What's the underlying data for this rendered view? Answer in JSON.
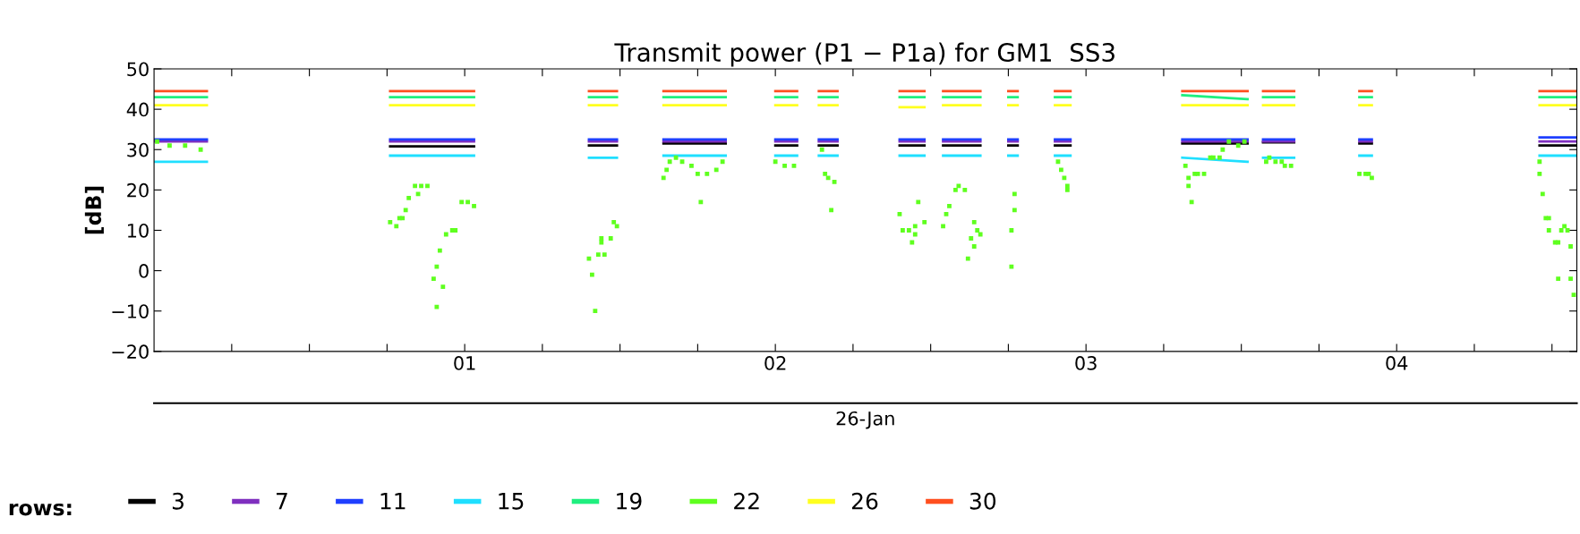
{
  "chart_data": {
    "type": "line",
    "title": "Transmit power (P1 − P1a) for GM1  SS3",
    "xlabel": "26-Jan",
    "ylabel": "[dB]",
    "legend_title": "rows:",
    "legend": "bottom left",
    "grid": false,
    "line_style": "solid",
    "marker": "none",
    "x": [
      0.0,
      0.17,
      0.4,
      0.76,
      1.03,
      1.2,
      1.4,
      1.49,
      1.55,
      1.64,
      1.84,
      1.9,
      2.0,
      2.07,
      2.1,
      2.14,
      2.2,
      2.3,
      2.4,
      2.48,
      2.5,
      2.54,
      2.66,
      2.7,
      2.75,
      2.78,
      2.85,
      2.9,
      2.95,
      3.1,
      3.31,
      3.52,
      3.55,
      3.57,
      3.67,
      3.8,
      3.88,
      3.92,
      4.2,
      4.46,
      4.58
    ],
    "xlim": [
      0,
      4.58
    ],
    "xticks": [
      {
        "value": 0.25,
        "label": null
      },
      {
        "value": 0.5,
        "label": null
      },
      {
        "value": 0.75,
        "label": null
      },
      {
        "value": 1,
        "label": "01"
      },
      {
        "value": 1.25,
        "label": null
      },
      {
        "value": 1.5,
        "label": null
      },
      {
        "value": 1.75,
        "label": null
      },
      {
        "value": 2,
        "label": "02"
      },
      {
        "value": 2.25,
        "label": null
      },
      {
        "value": 2.5,
        "label": null
      },
      {
        "value": 2.75,
        "label": null
      },
      {
        "value": 3,
        "label": "03"
      },
      {
        "value": 3.25,
        "label": null
      },
      {
        "value": 3.5,
        "label": null
      },
      {
        "value": 3.75,
        "label": null
      },
      {
        "value": 4,
        "label": "04"
      },
      {
        "value": 4.25,
        "label": null
      },
      {
        "value": 4.5,
        "label": null
      }
    ],
    "ylim": [
      -20,
      50
    ],
    "yticks": [
      {
        "value": -20,
        "label": "−20"
      },
      {
        "value": -10,
        "label": "−10"
      },
      0,
      10,
      20,
      30,
      40,
      50
    ],
    "series": [
      {
        "name": "3",
        "color": "#000000",
        "values": [
          null,
          null,
          null,
          30.8,
          30.8,
          null,
          31,
          31,
          null,
          31.5,
          31.5,
          null,
          31,
          31,
          null,
          31,
          31,
          null,
          31,
          31,
          null,
          31,
          31,
          null,
          31,
          31,
          null,
          31,
          31,
          null,
          31.5,
          31.5,
          null,
          31.8,
          31.8,
          null,
          31.5,
          31.5,
          null,
          31,
          31
        ]
      },
      {
        "name": "7",
        "color": "#7f2fbf",
        "values": [
          32,
          32,
          null,
          32,
          32,
          null,
          32,
          32,
          null,
          32,
          32,
          null,
          32,
          32,
          null,
          32,
          32,
          null,
          32,
          32,
          null,
          32,
          32,
          null,
          32,
          32,
          null,
          32,
          32,
          null,
          32,
          32,
          null,
          32,
          32,
          null,
          32,
          32,
          null,
          32,
          32
        ]
      },
      {
        "name": "11",
        "color": "#1f3fff",
        "values": [
          32.5,
          32.5,
          null,
          32.5,
          32.5,
          null,
          32.5,
          32.5,
          null,
          32.5,
          32.5,
          null,
          32.5,
          32.5,
          null,
          32.5,
          32.5,
          null,
          32.5,
          32.5,
          null,
          32.5,
          32.5,
          null,
          32.5,
          32.5,
          null,
          32.5,
          32.5,
          null,
          32.5,
          32.5,
          null,
          32.5,
          32.5,
          null,
          32.5,
          32.5,
          null,
          33,
          33
        ]
      },
      {
        "name": "15",
        "color": "#1fdfff",
        "values": [
          27,
          27,
          null,
          28.5,
          28.5,
          null,
          28,
          28,
          null,
          28.5,
          28.5,
          null,
          28.5,
          28.5,
          null,
          28.5,
          28.5,
          null,
          28.5,
          28.5,
          null,
          28.5,
          28.5,
          null,
          28.5,
          28.5,
          null,
          28.5,
          28.5,
          null,
          28,
          27,
          null,
          28,
          28,
          null,
          28.5,
          28.5,
          null,
          28.5,
          28.5
        ]
      },
      {
        "name": "19",
        "color": "#1fef7f",
        "values": [
          43,
          43,
          null,
          43,
          43,
          null,
          43,
          43,
          null,
          43,
          43,
          null,
          43,
          43,
          null,
          43,
          43,
          null,
          43,
          43,
          null,
          43,
          43,
          null,
          43,
          43,
          null,
          43,
          43,
          null,
          43.5,
          42.5,
          null,
          43,
          43,
          null,
          43,
          43,
          null,
          43,
          43
        ]
      },
      {
        "name": "22",
        "type": "scatter",
        "marker": "square",
        "color": "#5fff1f",
        "x": [
          0.01,
          0.05,
          0.1,
          0.15,
          0.76,
          0.78,
          0.79,
          0.8,
          0.81,
          0.82,
          0.84,
          0.85,
          0.86,
          0.88,
          0.9,
          0.91,
          0.92,
          0.93,
          0.91,
          0.94,
          0.96,
          0.97,
          0.99,
          1.01,
          1.03,
          1.4,
          1.41,
          1.42,
          1.43,
          1.44,
          1.44,
          1.45,
          1.47,
          1.48,
          1.49,
          1.64,
          1.65,
          1.66,
          1.68,
          1.7,
          1.73,
          1.75,
          1.78,
          1.81,
          1.83,
          1.76,
          2.0,
          2.03,
          2.06,
          2.15,
          2.16,
          2.17,
          2.19,
          2.18,
          2.4,
          2.41,
          2.43,
          2.44,
          2.45,
          2.45,
          2.46,
          2.48,
          2.54,
          2.55,
          2.56,
          2.58,
          2.59,
          2.61,
          2.62,
          2.63,
          2.64,
          2.64,
          2.65,
          2.66,
          2.77,
          2.77,
          2.76,
          2.76,
          2.91,
          2.92,
          2.93,
          2.94,
          2.94,
          3.32,
          3.33,
          3.33,
          3.34,
          3.35,
          3.36,
          3.38,
          3.4,
          3.41,
          3.43,
          3.44,
          3.46,
          3.49,
          3.51,
          3.58,
          3.59,
          3.61,
          3.63,
          3.64,
          3.66,
          3.88,
          3.9,
          3.91,
          3.92,
          4.46,
          4.46,
          4.47,
          4.48,
          4.49,
          4.49,
          4.51,
          4.52,
          4.53,
          4.54,
          4.55,
          4.52,
          4.56,
          4.57,
          4.56
        ],
        "values": [
          32,
          31,
          31,
          30,
          12,
          11,
          13,
          13,
          15,
          18,
          21,
          19,
          21,
          21,
          -2,
          1,
          5,
          -4,
          -9,
          9,
          10,
          10,
          17,
          17,
          16,
          3,
          -1,
          -10,
          4,
          7,
          8,
          4,
          8,
          12,
          11,
          23,
          25,
          27,
          28,
          27,
          26,
          24,
          24,
          25,
          27,
          17,
          27,
          26,
          26,
          30,
          24,
          23,
          22,
          15,
          14,
          10,
          10,
          7,
          9,
          11,
          17,
          12,
          11,
          14,
          16,
          20,
          21,
          20,
          3,
          8,
          12,
          6,
          10,
          9,
          19,
          15,
          10,
          1,
          27,
          25,
          23,
          21,
          20,
          26,
          23,
          21,
          17,
          24,
          24,
          24,
          28,
          28,
          28,
          30,
          32,
          31,
          32,
          27,
          28,
          27,
          27,
          26,
          26,
          24,
          24,
          24,
          23,
          27,
          24,
          19,
          13,
          13,
          10,
          7,
          7,
          10,
          11,
          10,
          -2,
          -2,
          -6,
          6
        ]
      },
      {
        "name": "26",
        "color": "#ffff1f",
        "values": [
          41,
          41,
          null,
          41,
          41,
          null,
          41,
          41,
          null,
          41,
          41,
          null,
          41,
          41,
          null,
          41,
          41,
          null,
          40.5,
          40.5,
          null,
          41,
          41,
          null,
          41,
          41,
          null,
          41,
          41,
          null,
          41,
          41,
          null,
          41,
          41,
          null,
          41,
          41,
          null,
          41,
          41
        ]
      },
      {
        "name": "30",
        "color": "#ff4f1f",
        "values": [
          44.5,
          44.5,
          null,
          44.5,
          44.5,
          null,
          44.5,
          44.5,
          null,
          44.5,
          44.5,
          null,
          44.5,
          44.5,
          null,
          44.5,
          44.5,
          null,
          44.5,
          44.5,
          null,
          44.5,
          44.5,
          null,
          44.5,
          44.5,
          null,
          44.5,
          44.5,
          null,
          44.5,
          44.5,
          null,
          44.5,
          44.5,
          null,
          44.5,
          44.5,
          null,
          44.5,
          44.5
        ]
      }
    ]
  }
}
